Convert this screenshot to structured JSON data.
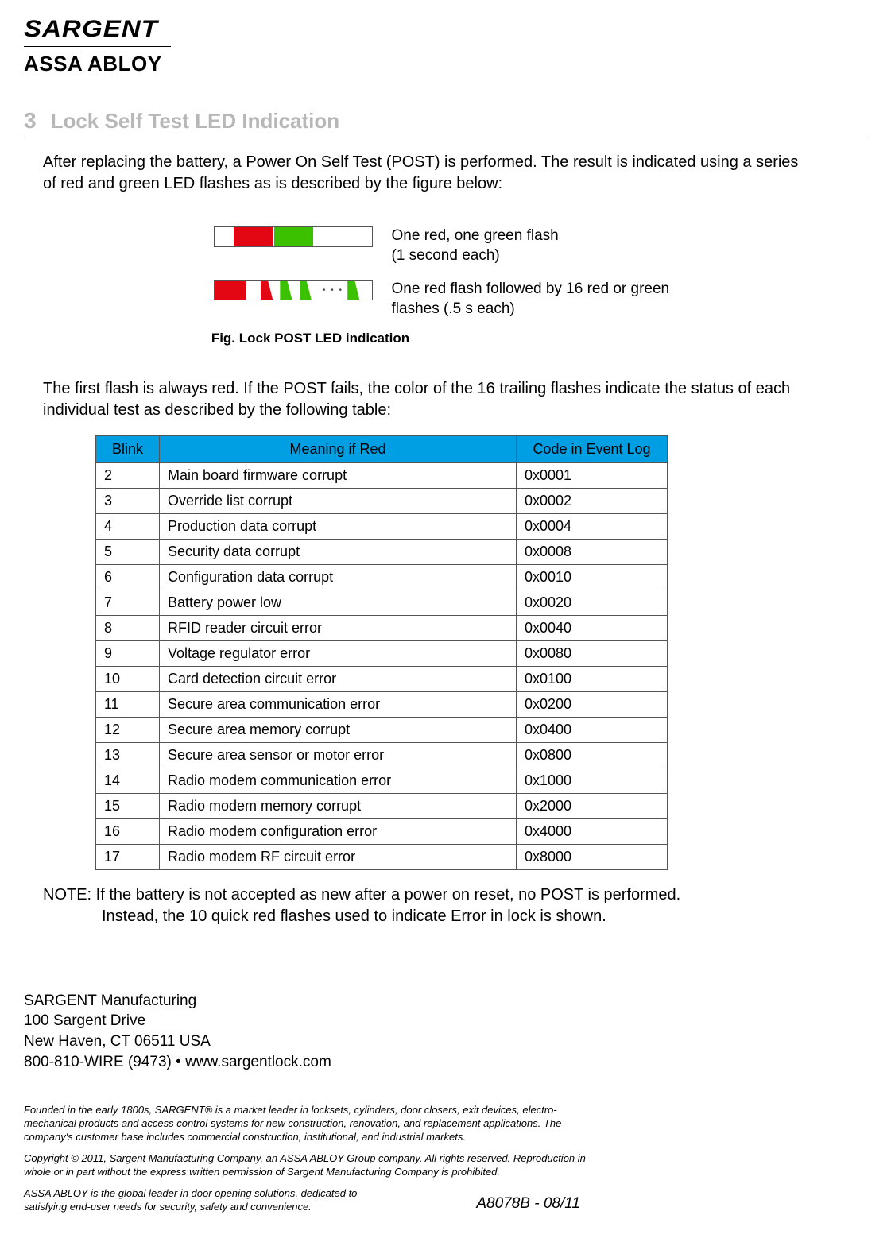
{
  "logo": {
    "brand_top": "SARGENT",
    "brand_bottom": "ASSA ABLOY"
  },
  "section": {
    "number": "3",
    "title": "Lock Self Test LED Indication"
  },
  "intro": "After replacing the battery, a Power On Self Test (POST) is performed. The result is indicated using a series of red and green LED flashes as is described by the figure below:",
  "figure": {
    "row1_label": "One red, one green flash\n(1 second each)",
    "row2_label": "One red flash followed by 16 red or green flashes (.5 s each)",
    "caption": "Fig. Lock POST LED indication",
    "seq1": {
      "segments": [
        {
          "color": "white",
          "flex": 1
        },
        {
          "color": "red",
          "flex": 2
        },
        {
          "color": "white",
          "flex": 0.1
        },
        {
          "color": "green",
          "flex": 2
        },
        {
          "color": "white",
          "flex": 3
        }
      ]
    },
    "seq2": {
      "segments": [
        {
          "color": "red",
          "flex": 1.3,
          "border": true
        },
        {
          "color": "white",
          "flex": 0.6
        },
        {
          "color": "red",
          "flex": 0.5,
          "tri": "right"
        },
        {
          "color": "white",
          "flex": 0.3
        },
        {
          "color": "green",
          "flex": 0.5,
          "tri": "right"
        },
        {
          "color": "white",
          "flex": 0.3
        },
        {
          "color": "green",
          "flex": 0.5,
          "tri": "right"
        },
        {
          "color": "white",
          "flex": 0.3
        },
        {
          "color": "ellipsis",
          "flex": 1.2
        },
        {
          "color": "green",
          "flex": 0.5,
          "tri": "right"
        },
        {
          "color": "white",
          "flex": 0.5
        }
      ]
    }
  },
  "mid_text": "The first flash is always red. If the POST fails, the color of the 16 trailing flashes indicate the status of each individual test as described by the following table:",
  "table": {
    "columns": [
      "Blink",
      "Meaning if Red",
      "Code in Event Log"
    ],
    "rows": [
      [
        "2",
        "Main board firmware corrupt",
        "0x0001"
      ],
      [
        "3",
        "Override list corrupt",
        "0x0002"
      ],
      [
        "4",
        "Production data corrupt",
        "0x0004"
      ],
      [
        "5",
        "Security data corrupt",
        "0x0008"
      ],
      [
        "6",
        "Configuration data corrupt",
        "0x0010"
      ],
      [
        "7",
        "Battery power low",
        "0x0020"
      ],
      [
        "8",
        "RFID reader circuit error",
        "0x0040"
      ],
      [
        "9",
        "Voltage regulator error",
        "0x0080"
      ],
      [
        "10",
        "Card detection circuit error",
        "0x0100"
      ],
      [
        "11",
        "Secure area communication error",
        "0x0200"
      ],
      [
        "12",
        "Secure area memory corrupt",
        "0x0400"
      ],
      [
        "13",
        "Secure area sensor or motor error",
        "0x0800"
      ],
      [
        "14",
        "Radio modem communication error",
        "0x1000"
      ],
      [
        "15",
        "Radio modem memory corrupt",
        "0x2000"
      ],
      [
        "16",
        "Radio modem configuration error",
        "0x4000"
      ],
      [
        "17",
        "Radio modem RF circuit error",
        "0x8000"
      ]
    ]
  },
  "note_line1": "NOTE: If the battery is not accepted as new after a power on reset, no POST is performed.",
  "note_line2": "Instead, the 10 quick red flashes used to indicate Error in lock is shown.",
  "contact": {
    "company": "SARGENT Manufacturing",
    "addr1": "100 Sargent Drive",
    "addr2": "New Haven, CT 06511 USA",
    "phone_web": "800-810-WIRE (9473) • www.sargentlock.com"
  },
  "fine": {
    "p1": "Founded in the early 1800s, SARGENT® is a market leader in locksets, cylinders, door closers, exit devices, electro-mechanical products and access control systems for new construction, renovation, and replacement applications. The company's customer base includes commercial construction, institutional, and industrial markets.",
    "p2": "Copyright © 2011, Sargent Manufacturing Company, an ASSA ABLOY Group company. All rights reserved. Reproduction in whole or in part without the express written permission of Sargent Manufacturing Company is prohibited.",
    "p3": "ASSA ABLOY is the global leader in door opening solutions, dedicated to satisfying end-user needs for security, safety and convenience."
  },
  "doc_code": "A8078B - 08/11",
  "colors": {
    "header_bg": "#009fe3",
    "red": "#e30613",
    "green": "#3bc100",
    "section_gray": "#b7b7b7"
  }
}
